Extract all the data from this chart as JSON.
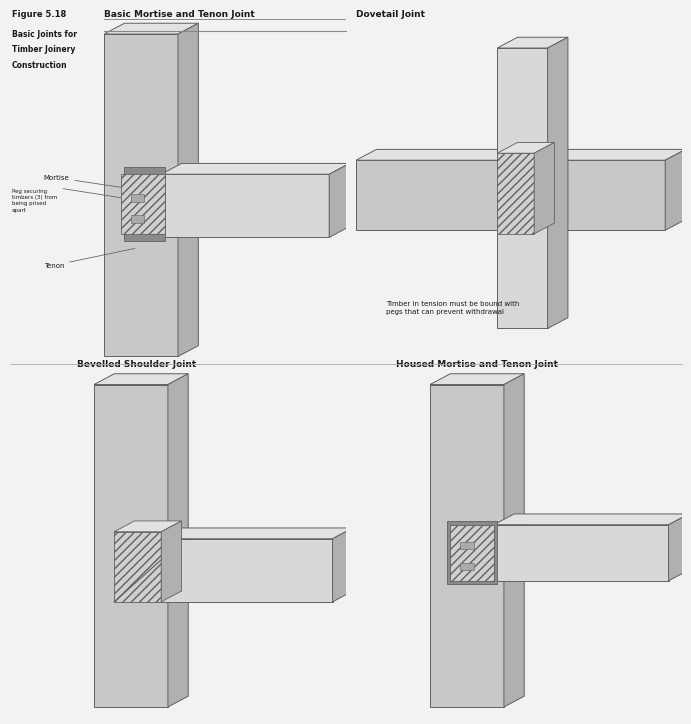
{
  "bg": "#f2f2f0",
  "face_front": "#c8c8c8",
  "face_top": "#e2e2e2",
  "face_side": "#b0b0b0",
  "face_dark": "#989898",
  "face_light": "#d8d8d8",
  "ec": "#606060",
  "hatch_fc": "#d0d0d0",
  "text_dark": "#1a1a1a",
  "text_mid": "#333333",
  "panel_titles": [
    "Basic Mortise and Tenon Joint",
    "Dovetail Joint",
    "Bevelled Shoulder Joint",
    "Housed Mortise and Tenon Joint"
  ],
  "caption_title": "Figure 5.18",
  "caption_lines": [
    "Basic Joints for",
    "Timber Joinery",
    "Construction"
  ],
  "label_mortise": "Mortise",
  "label_tenon": "Tenon",
  "label_peg": "Peg securing\ntimbers (3) from\nbeing prised\napart",
  "dovetail_note": "Timber in tension must be bound with\npegs that can prevent withdrawal"
}
